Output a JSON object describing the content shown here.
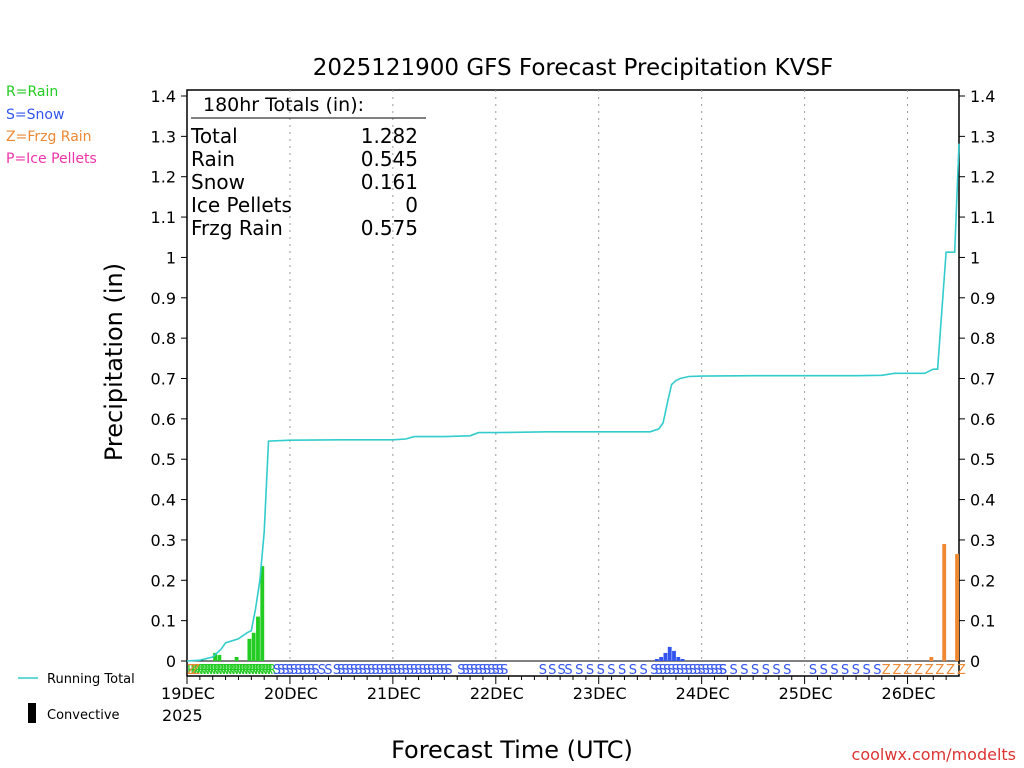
{
  "chart_data": {
    "type": "bar",
    "title": "2025121900 GFS Forecast Precipitation KVSF",
    "ylabel": "Precipitation (in)",
    "xlabel": "Forecast Time (UTC)",
    "ylim": [
      0,
      1.4
    ],
    "xlim_hours": [
      0,
      180
    ],
    "yticks": [
      "0",
      "0.1",
      "0.2",
      "0.3",
      "0.4",
      "0.5",
      "0.6",
      "0.7",
      "0.8",
      "0.9",
      "1",
      "1.1",
      "1.2",
      "1.3",
      "1.4"
    ],
    "xticks": [
      {
        "hour": 0,
        "label": "19DEC",
        "sublabel": "2025"
      },
      {
        "hour": 24,
        "label": "20DEC"
      },
      {
        "hour": 48,
        "label": "21DEC"
      },
      {
        "hour": 72,
        "label": "22DEC"
      },
      {
        "hour": 96,
        "label": "23DEC"
      },
      {
        "hour": 120,
        "label": "24DEC"
      },
      {
        "hour": 144,
        "label": "25DEC"
      },
      {
        "hour": 168,
        "label": "26DEC"
      }
    ],
    "legend_types": [
      {
        "text": "R=Rain",
        "color": "#22cc22"
      },
      {
        "text": "S=Snow",
        "color": "#3355ee"
      },
      {
        "text": "Z=Frzg Rain",
        "color": "#ee8833"
      },
      {
        "text": "P=Ice Pellets",
        "color": "#ee33aa"
      }
    ],
    "legend_lines": {
      "running_total": {
        "text": "Running Total",
        "color": "#33cccc"
      },
      "convective": {
        "text": "Convective",
        "color": "#000000"
      }
    },
    "totals": {
      "header": "180hr Totals (in):",
      "rows": [
        {
          "label": "Total",
          "value": "1.282"
        },
        {
          "label": "Rain",
          "value": "0.545"
        },
        {
          "label": "Snow",
          "value": "0.161"
        },
        {
          "label": "Ice Pellets",
          "value": "0"
        },
        {
          "label": "Frzg Rain",
          "value": "0.575"
        }
      ]
    },
    "series": [
      {
        "name": "Rain",
        "color": "#22cc22",
        "bars": [
          {
            "h": 7,
            "v": 0.02
          },
          {
            "h": 8,
            "v": 0.015
          },
          {
            "h": 12,
            "v": 0.01
          },
          {
            "h": 15,
            "v": 0.055
          },
          {
            "h": 16,
            "v": 0.07
          },
          {
            "h": 17,
            "v": 0.11
          },
          {
            "h": 18,
            "v": 0.235
          }
        ]
      },
      {
        "name": "Snow",
        "color": "#3355ee",
        "bars": [
          {
            "h": 110,
            "v": 0.005
          },
          {
            "h": 111,
            "v": 0.01
          },
          {
            "h": 112,
            "v": 0.02
          },
          {
            "h": 113,
            "v": 0.035
          },
          {
            "h": 114,
            "v": 0.025
          },
          {
            "h": 115,
            "v": 0.01
          },
          {
            "h": 116,
            "v": 0.005
          }
        ]
      },
      {
        "name": "Frzg Rain",
        "color": "#ee8833",
        "bars": [
          {
            "h": 174,
            "v": 0.01
          },
          {
            "h": 177,
            "v": 0.29
          },
          {
            "h": 180,
            "v": 0.265
          }
        ]
      }
    ],
    "running_total": {
      "name": "Running Total",
      "color": "#33cccc",
      "x": [
        0,
        3,
        6,
        8,
        9,
        12,
        14,
        15,
        16,
        17,
        18,
        19,
        24,
        36,
        48,
        51,
        53,
        60,
        66,
        68,
        72,
        84,
        96,
        108,
        110,
        111,
        112,
        113,
        114,
        115,
        117,
        120,
        132,
        144,
        156,
        162,
        165,
        168,
        171,
        172,
        174,
        175,
        177,
        178,
        179,
        180
      ],
      "y": [
        0,
        0.002,
        0.01,
        0.03,
        0.045,
        0.055,
        0.07,
        0.075,
        0.13,
        0.2,
        0.32,
        0.545,
        0.547,
        0.548,
        0.548,
        0.55,
        0.556,
        0.556,
        0.558,
        0.566,
        0.566,
        0.568,
        0.568,
        0.568,
        0.575,
        0.59,
        0.64,
        0.685,
        0.695,
        0.7,
        0.705,
        0.706,
        0.707,
        0.707,
        0.707,
        0.708,
        0.713,
        0.713,
        0.713,
        0.713,
        0.723,
        0.723,
        1.013,
        1.013,
        1.013,
        1.282
      ]
    },
    "type_strip": [
      {
        "from": 0,
        "to": 19,
        "step": 0.75,
        "char": "R",
        "color": "#22cc22"
      },
      {
        "from": 0,
        "to": 1,
        "step": 1,
        "char": "Z",
        "color": "#ee8833"
      },
      {
        "from": 20,
        "to": 28,
        "step": 1,
        "char": "S",
        "color": "#3355ee"
      },
      {
        "from": 29,
        "to": 32,
        "step": 1.5,
        "char": "S",
        "color": "#3355ee"
      },
      {
        "from": 34,
        "to": 60,
        "step": 1,
        "char": "S",
        "color": "#3355ee"
      },
      {
        "from": 63,
        "to": 73,
        "step": 1,
        "char": "S",
        "color": "#3355ee"
      },
      {
        "from": 82,
        "to": 87,
        "step": 2.2,
        "char": "S",
        "color": "#3355ee"
      },
      {
        "from": 88,
        "to": 106,
        "step": 2.5,
        "char": "S",
        "color": "#3355ee"
      },
      {
        "from": 108,
        "to": 124,
        "step": 1,
        "char": "S",
        "color": "#3355ee"
      },
      {
        "from": 124,
        "to": 140,
        "step": 2.5,
        "char": "S",
        "color": "#3355ee"
      },
      {
        "from": 145,
        "to": 160,
        "step": 2.5,
        "char": "S",
        "color": "#3355ee"
      },
      {
        "from": 162,
        "to": 180,
        "step": 2.5,
        "char": "Z",
        "color": "#ee8833"
      }
    ],
    "credit": "coolwx.com/modelts"
  }
}
